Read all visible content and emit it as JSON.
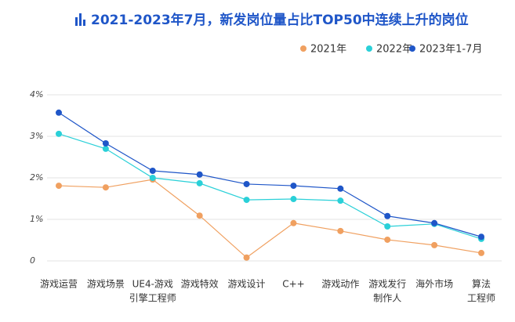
{
  "chart_data": {
    "type": "line",
    "title": "2021-2023年7月，新发岗位量占比TOP50中连续上升的岗位",
    "categories": [
      [
        "游戏运营"
      ],
      [
        "游戏场景"
      ],
      [
        "UE4-游戏",
        "引擎工程师"
      ],
      [
        "游戏特效"
      ],
      [
        "游戏设计"
      ],
      [
        "C++"
      ],
      [
        "游戏动作"
      ],
      [
        "游戏发行",
        "制作人"
      ],
      [
        "海外市场"
      ],
      [
        "算法",
        "工程师"
      ]
    ],
    "series": [
      {
        "name": "2021年",
        "color": "#f0a060",
        "values": [
          1.81,
          1.77,
          1.96,
          1.09,
          0.08,
          0.91,
          0.72,
          0.51,
          0.38,
          0.19
        ]
      },
      {
        "name": "2022年",
        "color": "#2ad0d8",
        "values": [
          3.06,
          2.7,
          2.0,
          1.87,
          1.47,
          1.49,
          1.45,
          0.83,
          0.89,
          0.53
        ]
      },
      {
        "name": "2023年1-7月",
        "color": "#1f56c8",
        "values": [
          3.57,
          2.83,
          2.17,
          2.08,
          1.85,
          1.81,
          1.74,
          1.08,
          0.91,
          0.58
        ]
      }
    ],
    "ylim": [
      0,
      4
    ],
    "yticks": [
      0,
      {
        "value": 1,
        "label": "1%"
      },
      {
        "value": 2,
        "label": "2%"
      },
      {
        "value": 3,
        "label": "3%"
      },
      {
        "value": 4,
        "label": "4%"
      }
    ],
    "grid": true
  }
}
